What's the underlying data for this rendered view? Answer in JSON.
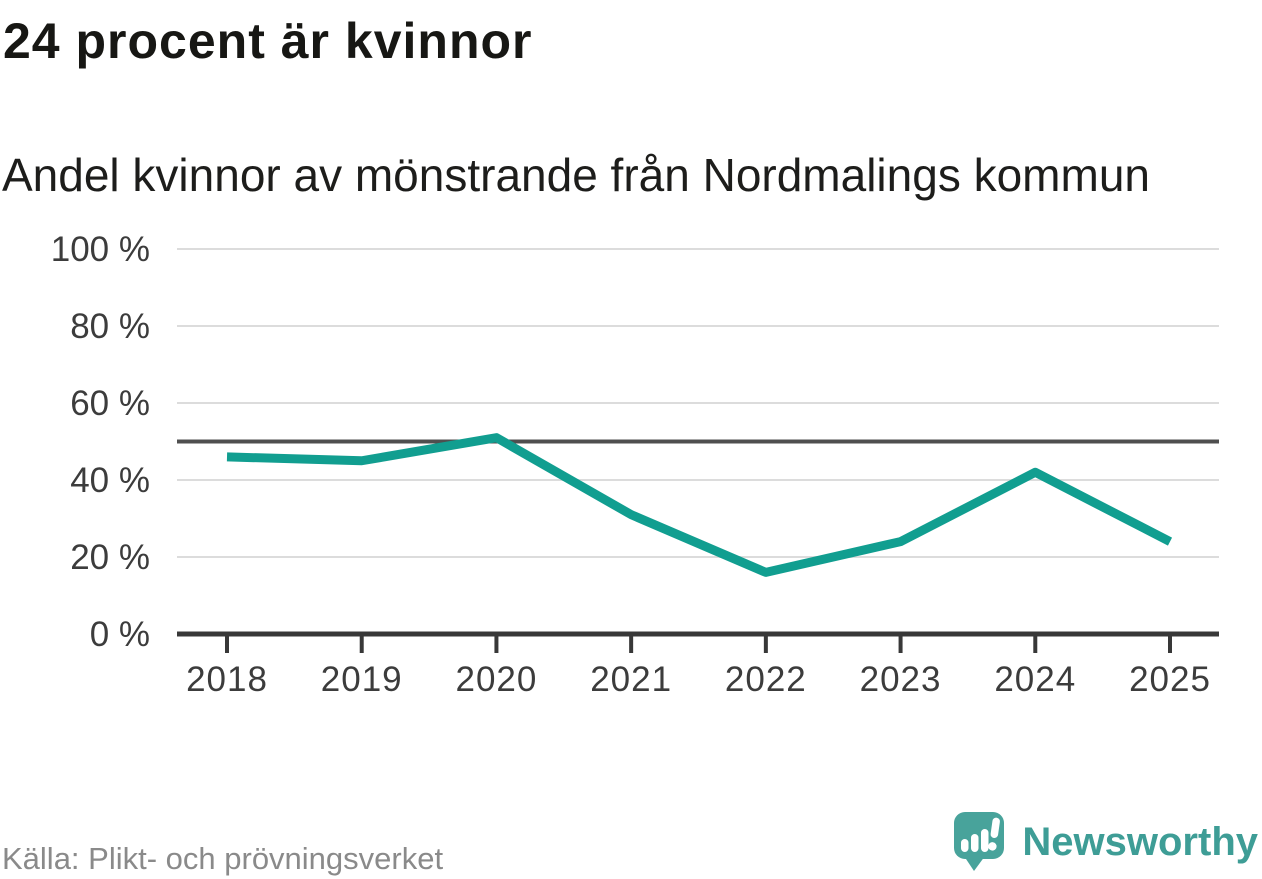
{
  "chart_data": {
    "type": "line",
    "title": "24 procent är kvinnor",
    "subtitle": "Andel kvinnor av mönstrande från Nordmalings kommun",
    "source": "Källa: Plikt- och prövningsverket",
    "x": [
      "2018",
      "2019",
      "2020",
      "2021",
      "2022",
      "2023",
      "2024",
      "2025"
    ],
    "values": [
      46,
      45,
      51,
      31,
      16,
      24,
      42,
      24
    ],
    "unit": "%",
    "ylim": [
      0,
      100
    ],
    "yticks": [
      0,
      20,
      40,
      60,
      80,
      100
    ],
    "ytick_labels": [
      "0 %",
      "20 %",
      "40 %",
      "60 %",
      "80 %",
      "100 %"
    ],
    "reference_line": 50,
    "grid": true,
    "legend": "none",
    "line_color": "#119e90"
  },
  "footer": {
    "brand": "Newsworthy"
  },
  "colors": {
    "line": "#119e90",
    "grid": "#dcdcdc",
    "reference_line": "#4f4f4f",
    "axis": "#383838",
    "axis_text": "#3c3c3c",
    "title_text": "#171714",
    "source_text": "#8a8a8a",
    "brand_teal": "#3e9d96",
    "brand_icon": "#48a39b"
  }
}
